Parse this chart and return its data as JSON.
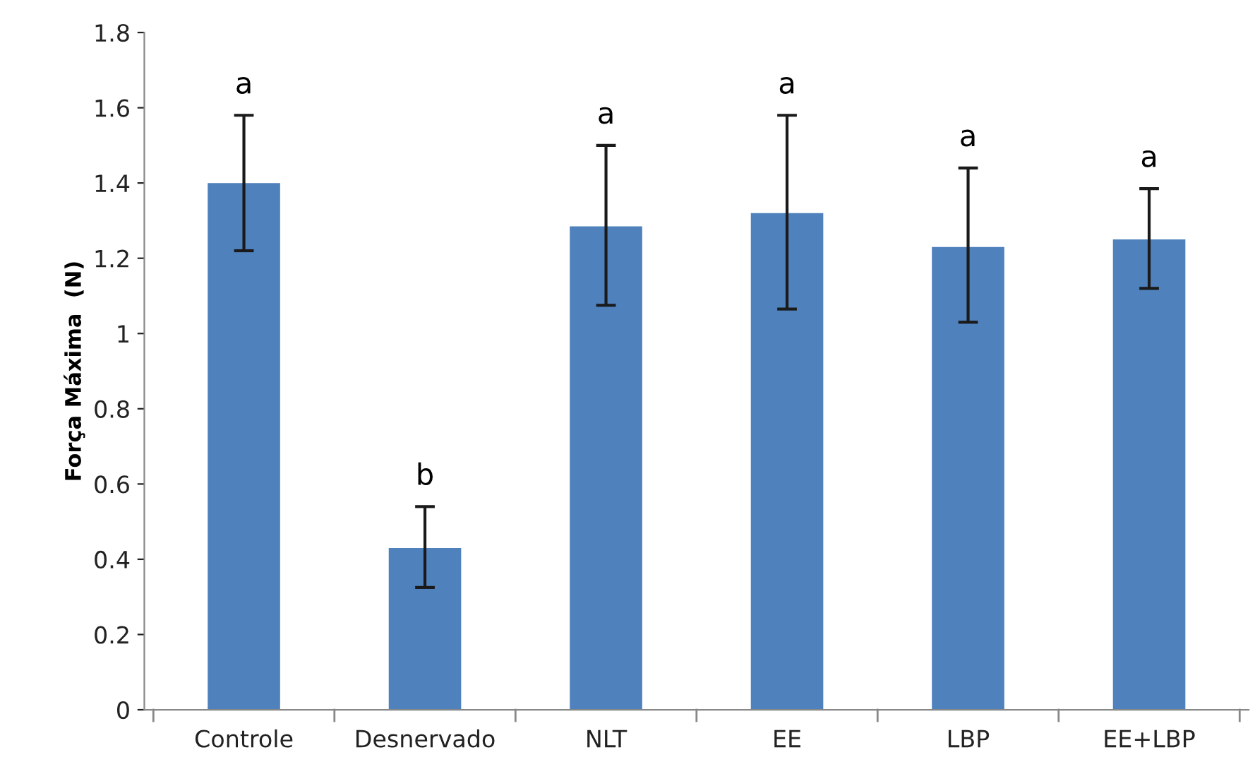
{
  "chart_data": {
    "type": "bar",
    "ylabel": "Força Máxima  (N)",
    "categories": [
      "Controle",
      "Desnervado",
      "NLT",
      "EE",
      "LBP",
      "EE+LBP"
    ],
    "values": [
      1.4,
      0.43,
      1.285,
      1.32,
      1.23,
      1.25
    ],
    "errors": [
      [
        1.22,
        1.58
      ],
      [
        0.325,
        0.54
      ],
      [
        1.075,
        1.5
      ],
      [
        1.065,
        1.58
      ],
      [
        1.03,
        1.44
      ],
      [
        1.12,
        1.385
      ]
    ],
    "color": "#4f81bd",
    "ylim": [
      0,
      1.8
    ],
    "yticks": [
      0,
      0.2,
      0.4,
      0.6,
      0.8,
      1,
      1.2,
      1.4,
      1.6,
      1.8
    ],
    "grid": false,
    "annotations": [
      {
        "text": "a",
        "x": "Controle",
        "y": 1.58
      },
      {
        "text": "b",
        "x": "Desnervado",
        "y": 0.54
      },
      {
        "text": "a",
        "x": "NLT",
        "y": 1.5
      },
      {
        "text": "a",
        "x": "EE",
        "y": 1.58
      },
      {
        "text": "a",
        "x": "LBP",
        "y": 1.44
      },
      {
        "text": "a",
        "x": "EE+LBP",
        "y": 1.385
      }
    ]
  }
}
